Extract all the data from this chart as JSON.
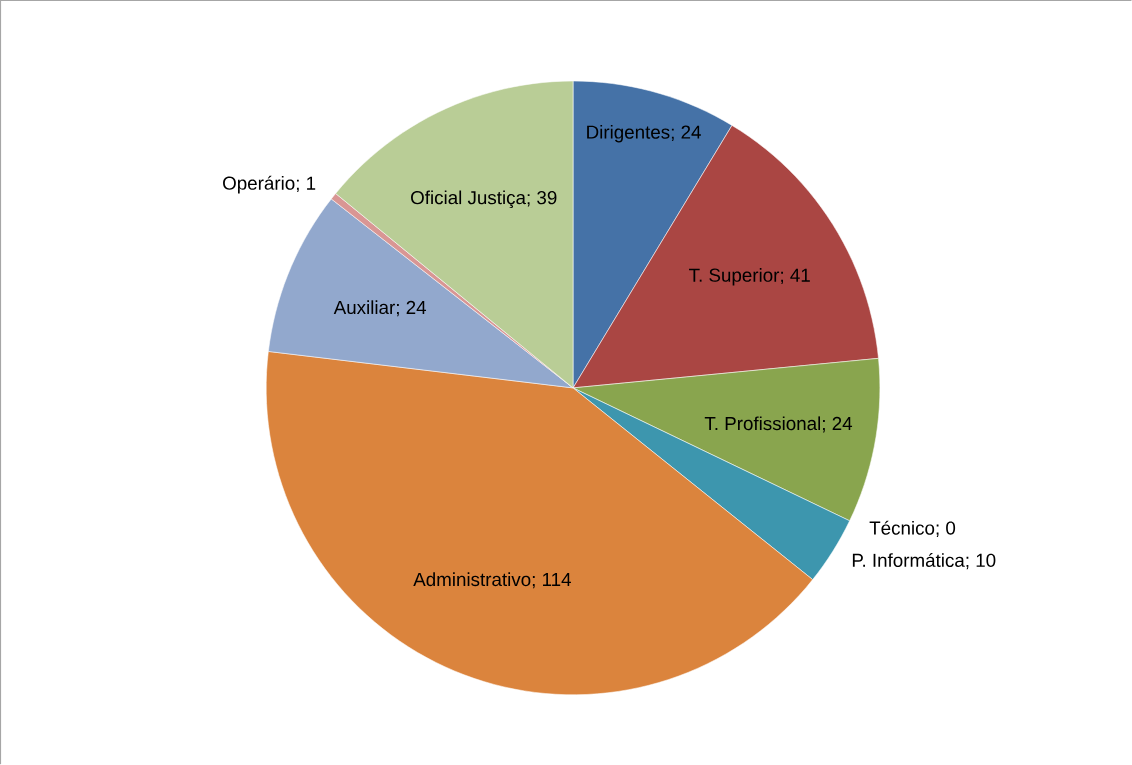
{
  "chart_data": {
    "type": "pie",
    "categories": [
      "Dirigentes",
      "T. Superior",
      "T. Profissional",
      "Técnico",
      "P. Informática",
      "Administrativo",
      "Auxiliar",
      "Operário",
      "Oficial Justiça"
    ],
    "values": [
      24,
      41,
      24,
      0,
      10,
      114,
      24,
      1,
      39
    ],
    "colors": [
      "#4572a7",
      "#aa4643",
      "#89a54e",
      "#80699b",
      "#3d96ae",
      "#db843d",
      "#92a8cd",
      "#d99694",
      "#b9cd96"
    ],
    "value_labels": [
      "; 24",
      "; 41",
      "; 24",
      "; 0",
      "; 10",
      "; 114",
      "; 24",
      "; 1",
      "; 39"
    ]
  }
}
